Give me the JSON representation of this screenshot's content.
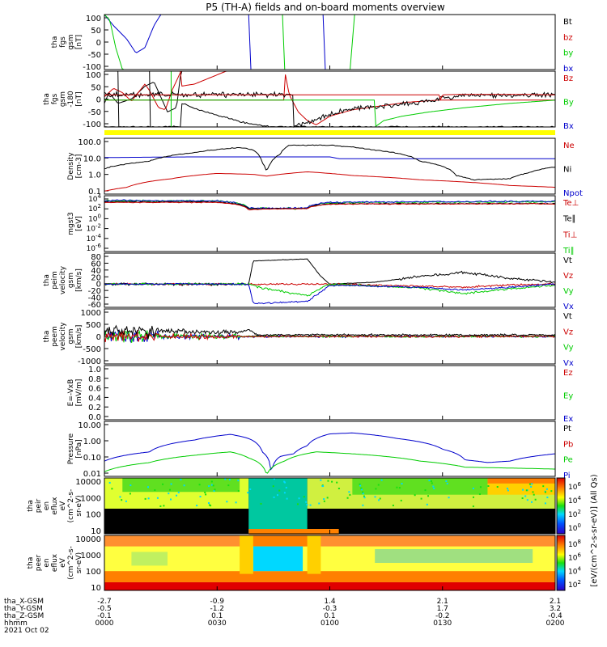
{
  "chart_data": {
    "type": "line",
    "title": "P5 (TH-A) fields and on-board moments overview",
    "panels": [
      {
        "ylabel": [
          "tha",
          "fgs",
          "gsm",
          "[nT]"
        ],
        "ylim": [
          -100,
          100
        ],
        "yticks": [
          "100",
          "50",
          "0",
          "-50",
          "-100"
        ],
        "legend": [
          {
            "label": "Bt",
            "color": "#000000"
          },
          {
            "label": "bz",
            "color": "#cc0000"
          },
          {
            "label": "by",
            "color": "#00cc00"
          },
          {
            "label": "bx",
            "color": "#0000cc"
          }
        ]
      },
      {
        "ylabel": [
          "tha",
          "fgs",
          "gsm",
          "-180",
          "[nT]"
        ],
        "ylim": [
          -130,
          130
        ],
        "yticks": [
          "100",
          "50",
          "0",
          "-50",
          "-100"
        ],
        "legend": [
          {
            "label": "Bz",
            "color": "#cc0000"
          },
          {
            "label": "By",
            "color": "#00cc00"
          },
          {
            "label": "Bx",
            "color": "#0000cc"
          }
        ]
      },
      {
        "ylabel": [
          "Density",
          "[cm-3]"
        ],
        "yscale": "log",
        "yticks": [
          "100.0",
          "10.0",
          "1.0",
          "0.1"
        ],
        "legend": [
          {
            "label": "Ne",
            "color": "#cc0000"
          },
          {
            "label": "Ni",
            "color": "#000000"
          },
          {
            "label": "Npot",
            "color": "#0000cc"
          }
        ]
      },
      {
        "ylabel": [
          "mgst3",
          "[eV]"
        ],
        "yscale": "log",
        "yticks": [
          "10^4",
          "10^2",
          "10^0",
          "10^-2",
          "10^-4",
          "10^-6"
        ],
        "legend": [
          {
            "label": "Te⊥",
            "color": "#cc0000"
          },
          {
            "label": "Te∥",
            "color": "#000000"
          },
          {
            "label": "Ti⊥",
            "color": "#cc0000"
          },
          {
            "label": "Ti∥",
            "color": "#00cc00"
          }
        ]
      },
      {
        "ylabel": [
          "tha",
          "peim",
          "velocity",
          "gsm",
          "[km/s]"
        ],
        "ylim": [
          -60,
          80
        ],
        "yticks": [
          "80",
          "60",
          "40",
          "20",
          "0",
          "-20",
          "-40",
          "-60"
        ],
        "legend": [
          {
            "label": "Vt",
            "color": "#000000"
          },
          {
            "label": "Vz",
            "color": "#cc0000"
          },
          {
            "label": "Vy",
            "color": "#00cc00"
          },
          {
            "label": "Vx",
            "color": "#0000cc"
          }
        ]
      },
      {
        "ylabel": [
          "tha",
          "peem",
          "velocity",
          "gsm",
          "[km/s]"
        ],
        "ylim": [
          -1000,
          1000
        ],
        "yticks": [
          "1000",
          "500",
          "0",
          "-500",
          "-1000"
        ],
        "legend": [
          {
            "label": "Vt",
            "color": "#000000"
          },
          {
            "label": "Vz",
            "color": "#cc0000"
          },
          {
            "label": "Vy",
            "color": "#00cc00"
          },
          {
            "label": "Vx",
            "color": "#0000cc"
          }
        ]
      },
      {
        "ylabel": [
          "E=-VxB",
          "[mV/m]"
        ],
        "ylim": [
          0,
          1
        ],
        "yticks": [
          "1.0",
          "0.8",
          "0.6",
          "0.4",
          "0.2",
          "0.0"
        ],
        "legend": [
          {
            "label": "Ez",
            "color": "#cc0000"
          },
          {
            "label": "Ey",
            "color": "#00cc00"
          },
          {
            "label": "Ex",
            "color": "#0000cc"
          }
        ]
      },
      {
        "ylabel": [
          "Pressure",
          "[nPa]"
        ],
        "yscale": "log",
        "yticks": [
          "10.00",
          "1.00",
          "0.10",
          "0.01"
        ],
        "legend": [
          {
            "label": "Pt",
            "color": "#000000"
          },
          {
            "label": "Pb",
            "color": "#cc0000"
          },
          {
            "label": "Pe",
            "color": "#00cc00"
          },
          {
            "label": "Pi",
            "color": "#0000cc"
          }
        ]
      },
      {
        "type": "heatmap",
        "ylabel": [
          "tha",
          "peir",
          "en",
          "eflux",
          "eV",
          "(cm^2-s-",
          "sr-eV)"
        ],
        "yticks": [
          "10000",
          "1000",
          "100",
          "10"
        ],
        "colorbar_ticks": [
          "10^6",
          "10^4",
          "10^2",
          "10^0"
        ],
        "colorbar_label": "[eV/(cm^2-s-sr-eV)] (All Qs)"
      },
      {
        "type": "heatmap",
        "ylabel": [
          "tha",
          "peer",
          "en",
          "eflux",
          "eV",
          "(cm^2-s-",
          "sr-eV)"
        ],
        "yticks": [
          "10000",
          "1000",
          "100",
          "10"
        ],
        "colorbar_ticks": [
          "10^8",
          "10^6",
          "10^4",
          "10^2"
        ],
        "colorbar_label": "[eV/(cm^2-s-sr-eV)]"
      }
    ],
    "x_axis": {
      "rows": [
        {
          "label": "tha_X-GSM",
          "values": [
            "-2.7",
            "-0.9",
            "1.4",
            "2.1",
            "2.1"
          ]
        },
        {
          "label": "tha_Y-GSM",
          "values": [
            "-0.5",
            "-1.2",
            "-0.3",
            "1.7",
            "3.2"
          ]
        },
        {
          "label": "tha_Z-GSM",
          "values": [
            "-0.1",
            "0.1",
            "0.1",
            "-0.2",
            "-0.4"
          ]
        },
        {
          "label": "hhmm",
          "values": [
            "0000",
            "0030",
            "0100",
            "0130",
            "0200"
          ]
        }
      ],
      "date": "2021 Oct 02"
    }
  }
}
